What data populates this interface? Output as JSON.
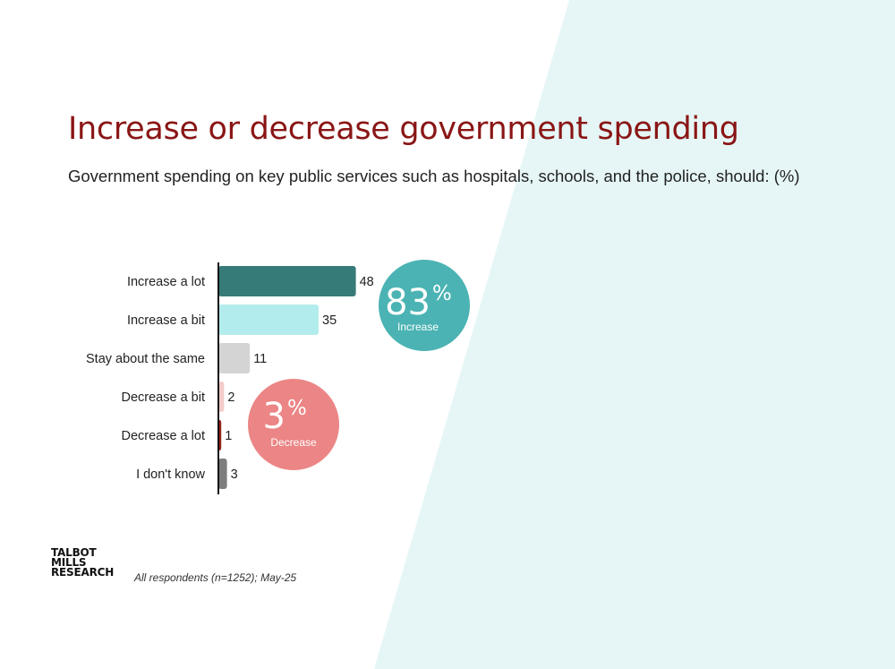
{
  "title": "Increase or decrease government spending",
  "subtitle": "Government spending on key public services such as hospitals, schools, and the police, should: (%)",
  "footer": {
    "logo_lines": [
      "TALBOT",
      "MILLS",
      "RESEARCH"
    ],
    "source": "All respondents (n=1252); May-25"
  },
  "callouts": {
    "increase": {
      "value": "83",
      "unit": "%",
      "label": "Increase",
      "color": "#4bb3b3"
    },
    "decrease": {
      "value": "3",
      "unit": "%",
      "label": "Decrease",
      "color": "#ec8585"
    }
  },
  "colors": {
    "title": "#8a1515",
    "background_accent": "#e6f6f6"
  },
  "chart_data": {
    "type": "bar",
    "orientation": "horizontal",
    "categories": [
      "Increase a lot",
      "Increase a bit",
      "Stay about the same",
      "Decrease a bit",
      "Decrease a lot",
      "I don't know"
    ],
    "values": [
      48,
      35,
      11,
      2,
      1,
      3
    ],
    "bar_colors": [
      "#377b78",
      "#b3ecec",
      "#d4d4d4",
      "#f4cccc",
      "#9a2218",
      "#7d7d7d"
    ],
    "title": "",
    "xlabel": "",
    "ylabel": "",
    "data_labels": true,
    "grid": false
  }
}
